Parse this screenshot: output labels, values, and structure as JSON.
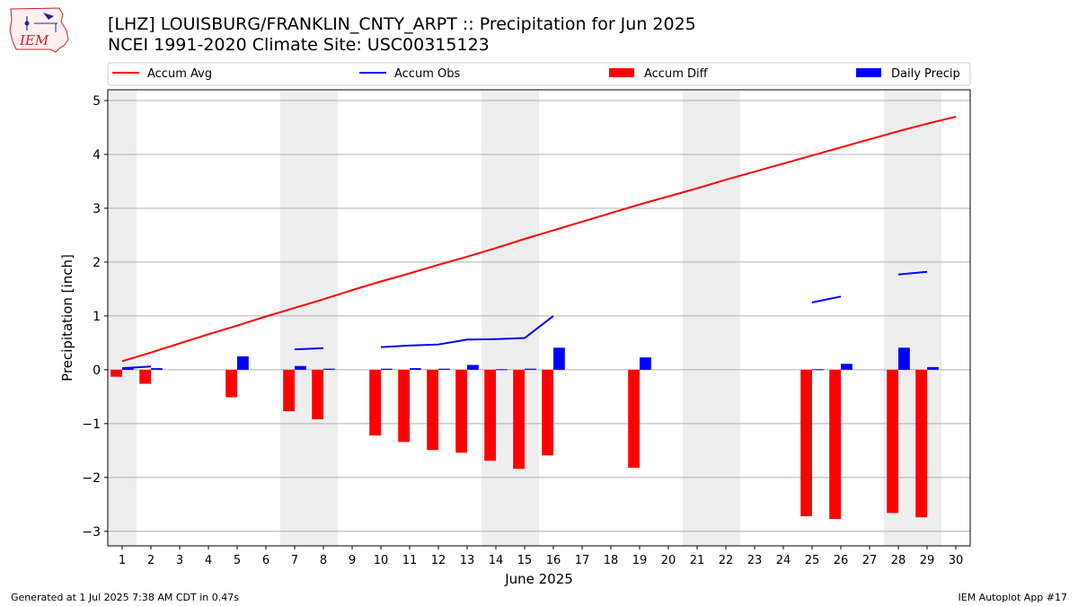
{
  "header": {
    "title": "[LHZ] LOUISBURG/FRANKLIN_CNTY_ARPT :: Precipitation for Jun 2025",
    "subtitle": "NCEI 1991-2020 Climate Site: USC00315123",
    "logo_text": "IEM"
  },
  "footer": {
    "generated": "Generated at 1 Jul 2025 7:38 AM CDT in 0.47s",
    "app": "IEM Autoplot App #17"
  },
  "colors": {
    "avg": "#ff0000",
    "obs": "#0000ff",
    "diff": "#ff0000",
    "daily": "#0000ff",
    "weekend_shade": "#eeeeee",
    "grid": "#b0b0b0"
  },
  "chart_data": {
    "type": "bar",
    "xlabel": "June 2025",
    "ylabel": "Precipitation [inch]",
    "xlim": [
      0.5,
      30.5
    ],
    "ylim": [
      -3.27,
      5.2
    ],
    "yticks": [
      -3,
      -2,
      -1,
      0,
      1,
      2,
      3,
      4,
      5
    ],
    "xticks": [
      1,
      2,
      3,
      4,
      5,
      6,
      7,
      8,
      9,
      10,
      11,
      12,
      13,
      14,
      15,
      16,
      17,
      18,
      19,
      20,
      21,
      22,
      23,
      24,
      25,
      26,
      27,
      28,
      29,
      30
    ],
    "grid": true,
    "legend_position": "top",
    "weekend_days": [
      1,
      7,
      8,
      14,
      15,
      21,
      22,
      28,
      29
    ],
    "series": [
      {
        "name": "Accum Avg",
        "kind": "line",
        "x": [
          1,
          2,
          3,
          4,
          5,
          6,
          7,
          8,
          9,
          10,
          11,
          12,
          13,
          14,
          15,
          16,
          17,
          18,
          19,
          20,
          21,
          22,
          23,
          24,
          25,
          26,
          27,
          28,
          29,
          30
        ],
        "values": [
          0.16,
          0.32,
          0.49,
          0.66,
          0.82,
          0.99,
          1.15,
          1.31,
          1.48,
          1.64,
          1.79,
          1.95,
          2.1,
          2.26,
          2.43,
          2.59,
          2.75,
          2.91,
          3.07,
          3.22,
          3.37,
          3.53,
          3.68,
          3.83,
          3.98,
          4.13,
          4.28,
          4.43,
          4.57,
          4.7
        ]
      },
      {
        "name": "Accum Obs",
        "kind": "line",
        "segments": [
          {
            "x": [
              1,
              2
            ],
            "values": [
              0.03,
              0.06
            ]
          },
          {
            "x": [
              7,
              8
            ],
            "values": [
              0.38,
              0.4
            ]
          },
          {
            "x": [
              10,
              11,
              12,
              13,
              14,
              15,
              16
            ],
            "values": [
              0.42,
              0.45,
              0.47,
              0.56,
              0.57,
              0.59,
              1.0
            ]
          },
          {
            "x": [
              25,
              26
            ],
            "values": [
              1.25,
              1.36
            ]
          },
          {
            "x": [
              28,
              29
            ],
            "values": [
              1.77,
              1.82
            ]
          }
        ]
      },
      {
        "name": "Accum Diff",
        "kind": "bar",
        "x": [
          1,
          2,
          5,
          7,
          8,
          10,
          11,
          12,
          13,
          14,
          15,
          16,
          19,
          25,
          26,
          28,
          29
        ],
        "values": [
          -0.13,
          -0.26,
          -0.51,
          -0.77,
          -0.92,
          -1.22,
          -1.34,
          -1.49,
          -1.54,
          -1.69,
          -1.84,
          -1.59,
          -1.82,
          -2.72,
          -2.77,
          -2.66,
          -2.74
        ]
      },
      {
        "name": "Daily Precip",
        "kind": "bar",
        "x": [
          1,
          2,
          5,
          7,
          8,
          10,
          11,
          12,
          13,
          14,
          15,
          16,
          19,
          25,
          26,
          28,
          29
        ],
        "values": [
          0.03,
          0.03,
          0.25,
          0.07,
          0.02,
          0.02,
          0.03,
          0.02,
          0.09,
          0.01,
          0.02,
          0.41,
          0.23,
          0.01,
          0.11,
          0.41,
          0.05
        ]
      }
    ]
  }
}
